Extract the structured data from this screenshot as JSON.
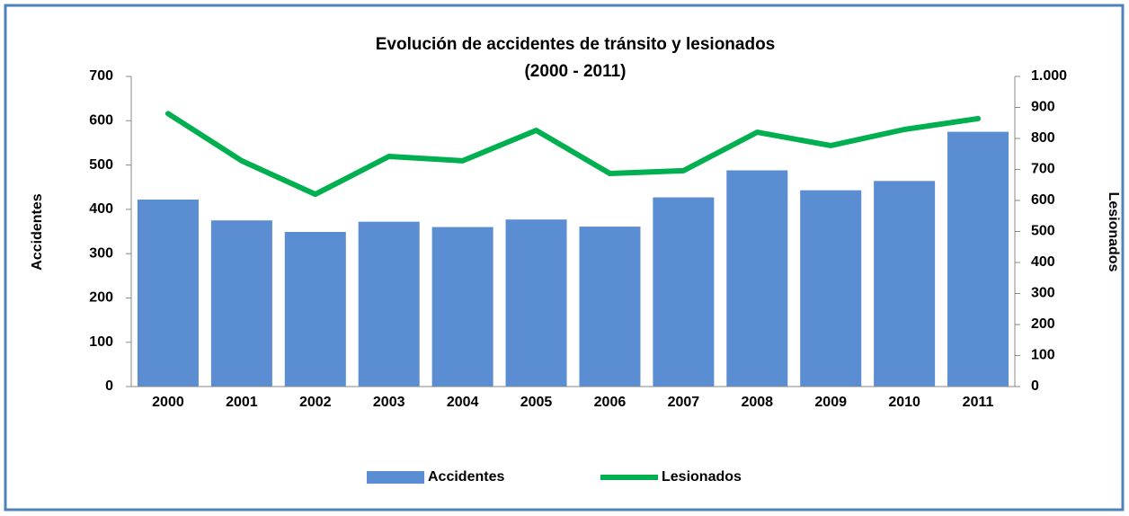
{
  "chart_data": {
    "type": "bar_line",
    "title": "Evolución de accidentes de tránsito y lesionados",
    "subtitle": "(2000 - 2011)",
    "y_label": "Accidentes",
    "y2_label": "Lesionados",
    "categories": [
      "2000",
      "2001",
      "2002",
      "2003",
      "2004",
      "2005",
      "2006",
      "2007",
      "2008",
      "2009",
      "2010",
      "2011"
    ],
    "series": [
      {
        "name": "Accidentes",
        "type": "bar",
        "color": "#5a8dd1",
        "values": [
          422,
          375,
          349,
          372,
          360,
          377,
          361,
          427,
          488,
          443,
          464,
          575
        ]
      },
      {
        "name": "Lesionados",
        "type": "line",
        "color": "#00b050",
        "axis": "y2",
        "values": [
          880,
          728,
          620,
          742,
          728,
          826,
          687,
          696,
          820,
          777,
          829,
          864
        ]
      }
    ],
    "ylim": [
      0,
      700
    ],
    "yticks": [
      0,
      100,
      200,
      300,
      400,
      500,
      600,
      700
    ],
    "y2lim": [
      0,
      1000
    ],
    "y2ticks": [
      0,
      100,
      200,
      300,
      400,
      500,
      600,
      700,
      800,
      900,
      {
        "value": 1000,
        "label": "1.000"
      }
    ],
    "legend": "bottom",
    "grid": false
  }
}
